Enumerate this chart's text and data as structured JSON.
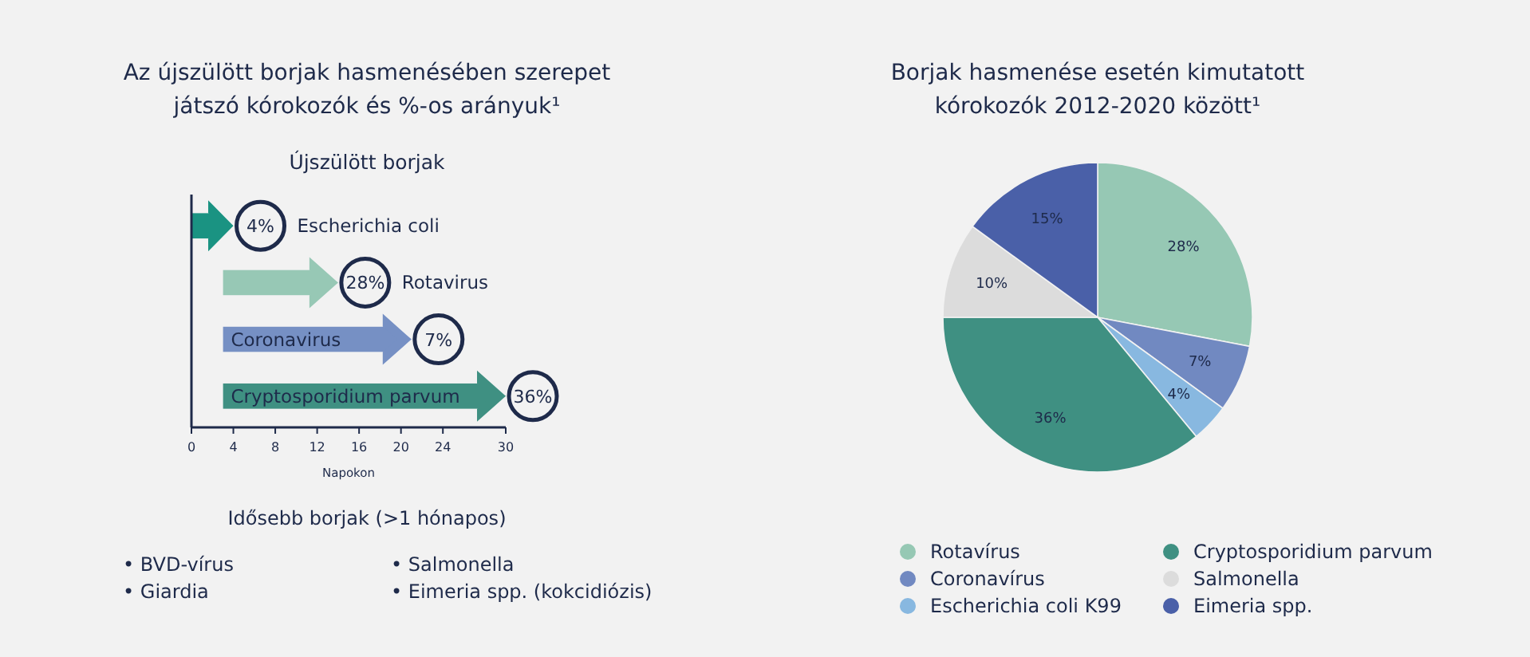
{
  "chart_data": [
    {
      "type": "bar",
      "orientation": "horizontal",
      "title": "Az újszülött borjak hasmenésében szerepet játszó kórokozók és %-os arányuk¹",
      "subtitle": "Újszülött borjak",
      "xlabel": "Napokon",
      "categories": [
        "Escherichia coli",
        "Rotavirus",
        "Coronavirus",
        "Cryptosporidium parvum"
      ],
      "base": [
        0,
        3,
        3,
        3
      ],
      "values": [
        4,
        11,
        18,
        27
      ],
      "colors": [
        "#1a9382",
        "#97c8b5",
        "#7690c4",
        "#3f9082"
      ],
      "xlim": [
        0,
        30
      ],
      "xticks": [
        0,
        4,
        8,
        12,
        16,
        20,
        24,
        30
      ],
      "annotations": [
        "4%",
        "28%",
        "7%",
        "36%",
        "Idősebb borjak (>1 hónapos)",
        "• BVD-vírus",
        "• Giardia",
        "• Salmonella",
        "• Eimeria spp. (kokcidiózis)"
      ]
    },
    {
      "type": "pie",
      "title": "Borjak hasmenése esetén kimutatott kórokozók 2012-2020 között¹",
      "categories": [
        "Rotavírus",
        "Coronavírus",
        "Escherichia coli K99",
        "Cryptosporidium parvum",
        "Salmonella",
        "Eimeria spp."
      ],
      "values": [
        28,
        7,
        4,
        36,
        10,
        15
      ],
      "colors": [
        "#96c8b4",
        "#7189c1",
        "#88b8e0",
        "#3f9082",
        "#dcdcdc",
        "#4a60a8"
      ],
      "value_labels": [
        "28%",
        "7%",
        "4%",
        "36%",
        "10%",
        "15%"
      ],
      "legend": "bottom"
    }
  ]
}
